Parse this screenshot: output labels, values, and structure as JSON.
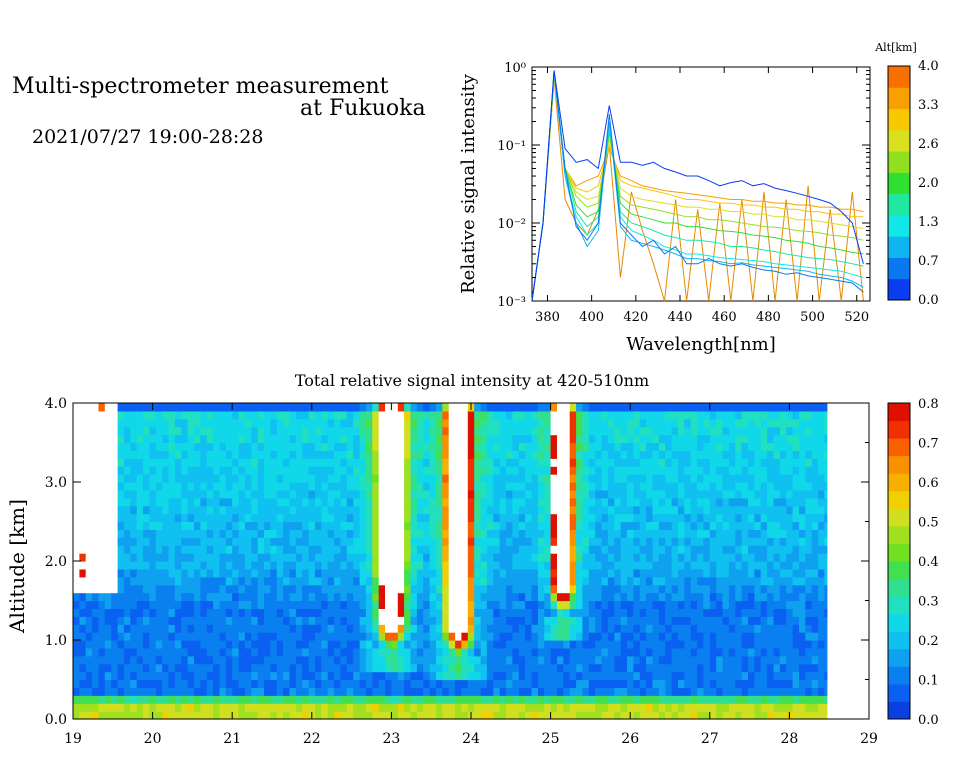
{
  "header": {
    "title_line1": "Multi-spectrometer measurement",
    "title_line2": "at Fukuoka",
    "datetime": "2021/07/27 19:00-28:28"
  },
  "chart_data": [
    {
      "type": "line",
      "xlabel": "Wavelength[nm]",
      "ylabel": "Relative signal intensity",
      "xlim": [
        373,
        526
      ],
      "ylim": [
        0.001,
        1
      ],
      "yscale": "log",
      "x_ticks": [
        "380",
        "400",
        "420",
        "440",
        "460",
        "480",
        "500",
        "520"
      ],
      "y_ticks": [
        "10⁰",
        "10⁻¹",
        "10⁻²",
        "10⁻³"
      ],
      "colorbar": {
        "label": "Alt[km]",
        "ticks": [
          "4.0",
          "3.3",
          "2.6",
          "2.0",
          "1.3",
          "0.7",
          "0.0"
        ],
        "colors": [
          "#0a3cf0",
          "#0a78f0",
          "#10b4f0",
          "#10e8e8",
          "#20e8a0",
          "#30e030",
          "#90e020",
          "#d8e020",
          "#f8c800",
          "#f8a000",
          "#f87000"
        ]
      },
      "x": [
        373,
        378,
        383,
        388,
        393,
        398,
        403,
        408,
        413,
        418,
        423,
        428,
        433,
        438,
        443,
        448,
        453,
        458,
        463,
        468,
        473,
        478,
        483,
        488,
        493,
        498,
        503,
        508,
        513,
        518,
        523
      ],
      "series": [
        {
          "alt": 0.0,
          "color": "#0a3cf0",
          "values": [
            0.001,
            0.01,
            0.9,
            0.09,
            0.06,
            0.065,
            0.05,
            0.32,
            0.06,
            0.06,
            0.055,
            0.06,
            0.05,
            0.045,
            0.04,
            0.04,
            0.035,
            0.03,
            0.033,
            0.035,
            0.03,
            0.032,
            0.028,
            0.026,
            0.024,
            0.022,
            0.02,
            0.018,
            0.014,
            0.01,
            0.003
          ]
        },
        {
          "alt": 0.2,
          "color": "#0a78f0",
          "values": [
            0.001,
            0.01,
            0.9,
            0.05,
            0.009,
            0.006,
            0.01,
            0.25,
            0.01,
            0.007,
            0.005,
            0.006,
            0.004,
            0.005,
            0.003,
            0.003,
            0.0035,
            0.003,
            0.0028,
            0.003,
            0.0027,
            0.0025,
            0.0024,
            0.0022,
            0.0023,
            0.0021,
            0.002,
            0.0019,
            0.0018,
            0.0017,
            0.0013
          ]
        },
        {
          "alt": 0.5,
          "color": "#10b4f0",
          "values": [
            0.001,
            0.01,
            0.9,
            0.04,
            0.01,
            0.005,
            0.008,
            0.2,
            0.009,
            0.006,
            0.0055,
            0.005,
            0.0045,
            0.004,
            0.0035,
            0.0035,
            0.0033,
            0.0032,
            0.003,
            0.0031,
            0.0029,
            0.0028,
            0.0027,
            0.0026,
            0.0025,
            0.0024,
            0.0022,
            0.0021,
            0.002,
            0.0018,
            0.0015
          ]
        },
        {
          "alt": 0.9,
          "color": "#10e8e8",
          "values": [
            0.001,
            0.01,
            0.85,
            0.04,
            0.012,
            0.007,
            0.01,
            0.18,
            0.012,
            0.008,
            0.007,
            0.006,
            0.005,
            0.0045,
            0.004,
            0.004,
            0.0038,
            0.0036,
            0.0035,
            0.0034,
            0.0033,
            0.0032,
            0.003,
            0.0029,
            0.0028,
            0.0027,
            0.0026,
            0.0025,
            0.0024,
            0.0022,
            0.002
          ]
        },
        {
          "alt": 1.3,
          "color": "#20e8a0",
          "values": [
            0.001,
            0.01,
            0.85,
            0.05,
            0.014,
            0.009,
            0.012,
            0.17,
            0.014,
            0.01,
            0.009,
            0.008,
            0.007,
            0.0065,
            0.006,
            0.006,
            0.0058,
            0.0055,
            0.005,
            0.005,
            0.0048,
            0.0045,
            0.0043,
            0.004,
            0.0038,
            0.0036,
            0.0035,
            0.0034,
            0.0032,
            0.003,
            0.0028
          ]
        },
        {
          "alt": 1.7,
          "color": "#30e030",
          "values": [
            0.001,
            0.01,
            0.8,
            0.05,
            0.017,
            0.012,
            0.014,
            0.15,
            0.018,
            0.013,
            0.012,
            0.011,
            0.01,
            0.01,
            0.009,
            0.009,
            0.0085,
            0.008,
            0.0078,
            0.0075,
            0.007,
            0.0068,
            0.0065,
            0.006,
            0.0058,
            0.0055,
            0.005,
            0.0048,
            0.0045,
            0.0042,
            0.004
          ]
        },
        {
          "alt": 2.2,
          "color": "#90e020",
          "values": [
            0.001,
            0.01,
            0.8,
            0.05,
            0.022,
            0.016,
            0.018,
            0.14,
            0.022,
            0.017,
            0.016,
            0.015,
            0.014,
            0.013,
            0.012,
            0.012,
            0.011,
            0.011,
            0.0105,
            0.01,
            0.0095,
            0.009,
            0.0088,
            0.0085,
            0.008,
            0.0078,
            0.0075,
            0.007,
            0.0068,
            0.0065,
            0.006
          ]
        },
        {
          "alt": 2.6,
          "color": "#d8e020",
          "values": [
            0.001,
            0.01,
            0.75,
            0.05,
            0.025,
            0.02,
            0.022,
            0.12,
            0.028,
            0.022,
            0.02,
            0.019,
            0.018,
            0.017,
            0.016,
            0.016,
            0.015,
            0.015,
            0.014,
            0.014,
            0.013,
            0.013,
            0.012,
            0.012,
            0.011,
            0.011,
            0.0105,
            0.01,
            0.0095,
            0.009,
            0.0085
          ]
        },
        {
          "alt": 3.1,
          "color": "#f8c800",
          "values": [
            0.001,
            0.01,
            0.7,
            0.05,
            0.028,
            0.025,
            0.03,
            0.1,
            0.035,
            0.03,
            0.028,
            0.026,
            0.024,
            0.022,
            0.02,
            0.02,
            0.019,
            0.018,
            0.018,
            0.017,
            0.017,
            0.016,
            0.016,
            0.015,
            0.015,
            0.014,
            0.014,
            0.013,
            0.013,
            0.012,
            0.012
          ]
        },
        {
          "alt": 3.5,
          "color": "#f8a000",
          "values": [
            0.001,
            0.01,
            0.7,
            0.05,
            0.03,
            0.035,
            0.04,
            0.09,
            0.04,
            0.035,
            0.03,
            0.028,
            0.026,
            0.025,
            0.024,
            0.023,
            0.022,
            0.021,
            0.02,
            0.02,
            0.019,
            0.019,
            0.018,
            0.018,
            0.017,
            0.017,
            0.016,
            0.016,
            0.015,
            0.015,
            0.014
          ]
        },
        {
          "alt": 3.9,
          "color": "#e88800",
          "values": [
            0.001,
            0.01,
            0.7,
            0.02,
            0.01,
            0.007,
            0.015,
            0.1,
            0.002,
            0.025,
            0.008,
            0.003,
            0.001,
            0.02,
            0.001,
            0.015,
            0.001,
            0.018,
            0.001,
            0.02,
            0.001,
            0.025,
            0.001,
            0.02,
            0.001,
            0.03,
            0.001,
            0.015,
            0.001,
            0.025,
            0.001
          ]
        }
      ]
    },
    {
      "type": "heatmap",
      "title": "Total relative signal intensity at 420-510nm",
      "ylabel": "Altitude [km]",
      "xlabel": "",
      "xlim": [
        19,
        29
      ],
      "ylim": [
        0,
        4
      ],
      "data_xlim": [
        19,
        28.47
      ],
      "x_ticks": [
        "19",
        "20",
        "21",
        "22",
        "23",
        "24",
        "25",
        "26",
        "27",
        "28",
        "29"
      ],
      "y_ticks": [
        "0.0",
        "1.0",
        "2.0",
        "3.0",
        "4.0"
      ],
      "colorbar": {
        "ticks": [
          "0.8",
          "0.7",
          "0.6",
          "0.5",
          "0.4",
          "0.3",
          "0.2",
          "0.1",
          "0.0"
        ],
        "range": [
          0,
          0.8
        ],
        "colors": [
          "#0a40e0",
          "#0a60f0",
          "#0a80f0",
          "#10a0f0",
          "#10c0f0",
          "#10d8e8",
          "#20e0c0",
          "#30e090",
          "#40e050",
          "#70e020",
          "#a0e020",
          "#d0e020",
          "#f0d000",
          "#f8b000",
          "#f89000",
          "#f86000",
          "#f03000",
          "#e01000"
        ]
      },
      "columns_strong": [
        {
          "center": 23.0,
          "width": 0.25,
          "base_alt": 0.85
        },
        {
          "center": 23.85,
          "width": 0.25,
          "base_alt": 0.75
        },
        {
          "center": 25.15,
          "width": 0.2,
          "base_alt": 1.3
        }
      ]
    }
  ]
}
